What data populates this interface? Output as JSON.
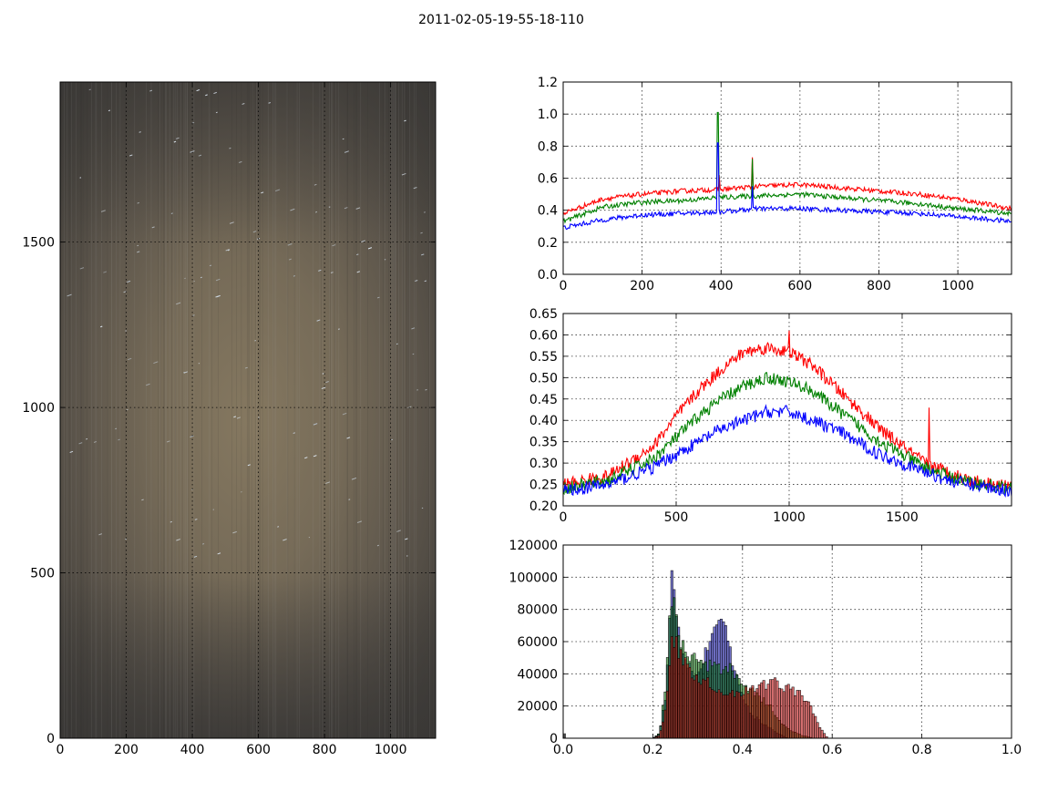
{
  "figure": {
    "title": "2011-02-05-19-55-18-110"
  },
  "colors": {
    "red": "#ff0000",
    "green": "#008000",
    "blue": "#0000ff",
    "grid": "#000000",
    "frame": "#000000"
  },
  "chart_data": [
    {
      "id": "image",
      "type": "heatmap",
      "title": "",
      "description_values": {
        "image_width": 1136,
        "image_height": 1984,
        "center_brightness": 0.46,
        "edge_brightness": 0.26
      },
      "xlim": [
        0,
        1136
      ],
      "ylim": [
        0,
        1984
      ],
      "xticks": [
        0,
        200,
        400,
        600,
        800,
        1000
      ],
      "yticks": [
        0,
        500,
        1000,
        1500
      ],
      "grid": true
    },
    {
      "id": "col-profile",
      "type": "line",
      "title": "",
      "xlim": [
        0,
        1136
      ],
      "ylim": [
        0.0,
        1.2
      ],
      "xticks": [
        0,
        200,
        400,
        600,
        800,
        1000
      ],
      "yticks": [
        0.0,
        0.2,
        0.4,
        0.6,
        0.8,
        1.0,
        1.2
      ],
      "ytick_labels": [
        "0.0",
        "0.2",
        "0.4",
        "0.6",
        "0.8",
        "1.0",
        "1.2"
      ],
      "grid": true,
      "series": [
        {
          "color": "red",
          "x": [
            0,
            100,
            200,
            300,
            400,
            500,
            600,
            700,
            800,
            900,
            1000,
            1136
          ],
          "y": [
            0.38,
            0.47,
            0.5,
            0.52,
            0.53,
            0.55,
            0.56,
            0.54,
            0.52,
            0.5,
            0.47,
            0.41
          ],
          "spikes": [
            [
              480,
              0.73
            ],
            [
              395,
              0.62
            ]
          ]
        },
        {
          "color": "green",
          "x": [
            0,
            100,
            200,
            300,
            400,
            500,
            600,
            700,
            800,
            900,
            1000,
            1136
          ],
          "y": [
            0.33,
            0.42,
            0.45,
            0.46,
            0.48,
            0.49,
            0.5,
            0.48,
            0.46,
            0.44,
            0.41,
            0.38
          ],
          "spikes": [
            [
              392,
              1.01
            ],
            [
              480,
              0.72
            ]
          ]
        },
        {
          "color": "blue",
          "x": [
            0,
            100,
            200,
            300,
            400,
            500,
            600,
            700,
            800,
            900,
            1000,
            1136
          ],
          "y": [
            0.29,
            0.34,
            0.37,
            0.38,
            0.39,
            0.41,
            0.41,
            0.4,
            0.39,
            0.38,
            0.36,
            0.33
          ],
          "spikes": [
            [
              392,
              0.82
            ],
            [
              480,
              0.55
            ]
          ]
        }
      ]
    },
    {
      "id": "row-profile",
      "type": "line",
      "title": "",
      "xlim": [
        0,
        1984
      ],
      "ylim": [
        0.2,
        0.65
      ],
      "xticks": [
        0,
        500,
        1000,
        1500
      ],
      "yticks": [
        0.2,
        0.25,
        0.3,
        0.35,
        0.4,
        0.45,
        0.5,
        0.55,
        0.6,
        0.65
      ],
      "ytick_labels": [
        "0.20",
        "0.25",
        "0.30",
        "0.35",
        "0.40",
        "0.45",
        "0.50",
        "0.55",
        "0.60",
        "0.65"
      ],
      "grid": true,
      "series": [
        {
          "color": "red",
          "x": [
            0,
            200,
            400,
            500,
            600,
            700,
            800,
            900,
            1000,
            1100,
            1200,
            1300,
            1400,
            1500,
            1600,
            1700,
            1800,
            1984
          ],
          "y": [
            0.25,
            0.27,
            0.34,
            0.41,
            0.47,
            0.52,
            0.56,
            0.57,
            0.56,
            0.53,
            0.48,
            0.43,
            0.38,
            0.34,
            0.3,
            0.28,
            0.26,
            0.245
          ],
          "spikes": [
            [
              1000,
              0.61
            ],
            [
              1620,
              0.43
            ]
          ]
        },
        {
          "color": "green",
          "x": [
            0,
            200,
            400,
            500,
            600,
            700,
            800,
            900,
            1000,
            1100,
            1200,
            1300,
            1400,
            1500,
            1600,
            1700,
            1800,
            1984
          ],
          "y": [
            0.24,
            0.26,
            0.31,
            0.36,
            0.41,
            0.45,
            0.48,
            0.5,
            0.49,
            0.47,
            0.43,
            0.39,
            0.35,
            0.32,
            0.29,
            0.27,
            0.255,
            0.24
          ],
          "spikes": []
        },
        {
          "color": "blue",
          "x": [
            0,
            200,
            400,
            500,
            600,
            700,
            800,
            900,
            1000,
            1100,
            1200,
            1300,
            1400,
            1500,
            1600,
            1700,
            1800,
            1984
          ],
          "y": [
            0.235,
            0.25,
            0.29,
            0.32,
            0.35,
            0.38,
            0.4,
            0.42,
            0.42,
            0.4,
            0.38,
            0.35,
            0.32,
            0.3,
            0.28,
            0.26,
            0.25,
            0.235
          ],
          "spikes": []
        }
      ]
    },
    {
      "id": "histogram",
      "type": "bar",
      "title": "",
      "xlim": [
        0.0,
        1.0
      ],
      "ylim": [
        0,
        120000
      ],
      "xticks": [
        0.0,
        0.2,
        0.4,
        0.6,
        0.8,
        1.0
      ],
      "xtick_labels": [
        "0.0",
        "0.2",
        "0.4",
        "0.6",
        "0.8",
        "1.0"
      ],
      "yticks": [
        0,
        20000,
        40000,
        60000,
        80000,
        100000,
        120000
      ],
      "grid": true,
      "bin_width": 0.005,
      "series": [
        {
          "color": "blue",
          "x": [
            0.2,
            0.215,
            0.23,
            0.24,
            0.245,
            0.25,
            0.26,
            0.27,
            0.28,
            0.3,
            0.32,
            0.34,
            0.35,
            0.36,
            0.37,
            0.38,
            0.4,
            0.42,
            0.45,
            0.48,
            0.5
          ],
          "y": [
            0,
            3000,
            30000,
            95000,
            116000,
            80000,
            62000,
            55000,
            45000,
            40000,
            55000,
            70000,
            77000,
            70000,
            58000,
            42000,
            25000,
            15000,
            8000,
            3000,
            0
          ]
        },
        {
          "color": "green",
          "x": [
            0.2,
            0.215,
            0.23,
            0.24,
            0.245,
            0.25,
            0.26,
            0.28,
            0.3,
            0.32,
            0.34,
            0.36,
            0.38,
            0.4,
            0.42,
            0.44,
            0.46,
            0.48,
            0.5,
            0.53,
            0.56
          ],
          "y": [
            0,
            3000,
            35000,
            85000,
            90000,
            75000,
            60000,
            52000,
            48000,
            45000,
            43000,
            45000,
            42000,
            35000,
            30000,
            25000,
            20000,
            12000,
            6000,
            2000,
            0
          ]
        },
        {
          "color": "red",
          "x": [
            0.2,
            0.215,
            0.23,
            0.24,
            0.25,
            0.26,
            0.28,
            0.3,
            0.33,
            0.36,
            0.39,
            0.42,
            0.45,
            0.47,
            0.49,
            0.51,
            0.53,
            0.55,
            0.57,
            0.59
          ],
          "y": [
            0,
            2000,
            20000,
            58000,
            60000,
            52000,
            42000,
            38000,
            33000,
            28000,
            28000,
            30000,
            33000,
            37000,
            32000,
            30000,
            28000,
            20000,
            8000,
            0
          ]
        }
      ]
    }
  ]
}
